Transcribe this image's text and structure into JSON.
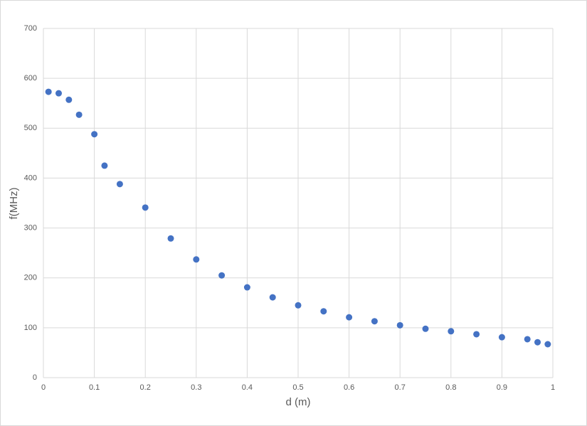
{
  "chart_data": {
    "type": "scatter",
    "x_label": "d (m)",
    "y_label": "f(MHz)",
    "series": [
      {
        "color": "#4472c4",
        "x": [
          0.01,
          0.03,
          0.05,
          0.07,
          0.1,
          0.12,
          0.15,
          0.2,
          0.25,
          0.3,
          0.35,
          0.4,
          0.45,
          0.5,
          0.55,
          0.6,
          0.65,
          0.7,
          0.75,
          0.8,
          0.85,
          0.9,
          0.95,
          0.97,
          0.99
        ],
        "values": [
          573,
          570,
          557,
          527,
          488,
          425,
          388,
          341,
          279,
          237,
          205,
          181,
          161,
          145,
          133,
          121,
          113,
          105,
          98,
          93,
          87,
          81,
          77,
          71,
          67
        ]
      }
    ],
    "xlim": [
      0,
      1
    ],
    "xticks": [
      0,
      0.1,
      0.2,
      0.3,
      0.4,
      0.5,
      0.6,
      0.7,
      0.8,
      0.9,
      1
    ],
    "ylim": [
      0,
      700
    ],
    "yticks": [
      0,
      100,
      200,
      300,
      400,
      500,
      600,
      700
    ],
    "grid": true
  }
}
